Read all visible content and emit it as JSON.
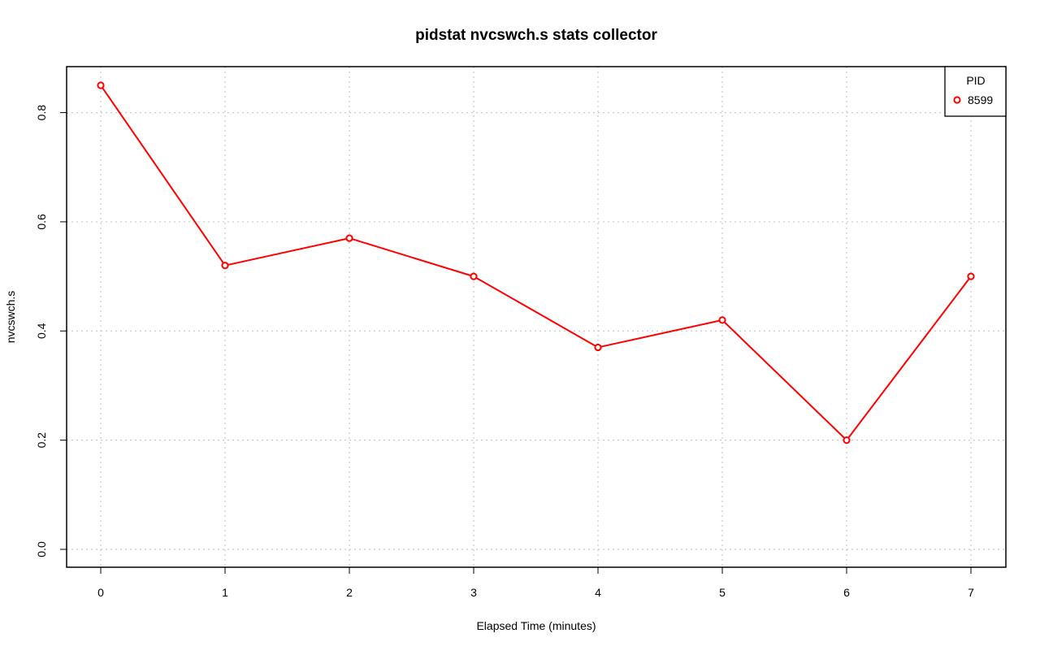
{
  "chart_data": {
    "type": "line",
    "title": "pidstat nvcswch.s stats collector",
    "xlabel": "Elapsed Time (minutes)",
    "ylabel": "nvcswch.s",
    "x": [
      0,
      1,
      2,
      3,
      4,
      5,
      6,
      7
    ],
    "xlim": [
      0,
      7
    ],
    "ylim": [
      0,
      0.85
    ],
    "x_ticks": [
      "0",
      "1",
      "2",
      "3",
      "4",
      "5",
      "6",
      "7"
    ],
    "y_ticks": [
      "0.0",
      "0.2",
      "0.4",
      "0.6",
      "0.8"
    ],
    "grid": true,
    "grid_style": "dotted",
    "legend": {
      "title": "PID",
      "placement": "top-right"
    },
    "series": [
      {
        "name": "8599",
        "color": "#ff0000",
        "marker": "open-circle",
        "values": [
          0.85,
          0.52,
          0.57,
          0.5,
          0.37,
          0.42,
          0.2,
          0.5
        ]
      }
    ]
  }
}
